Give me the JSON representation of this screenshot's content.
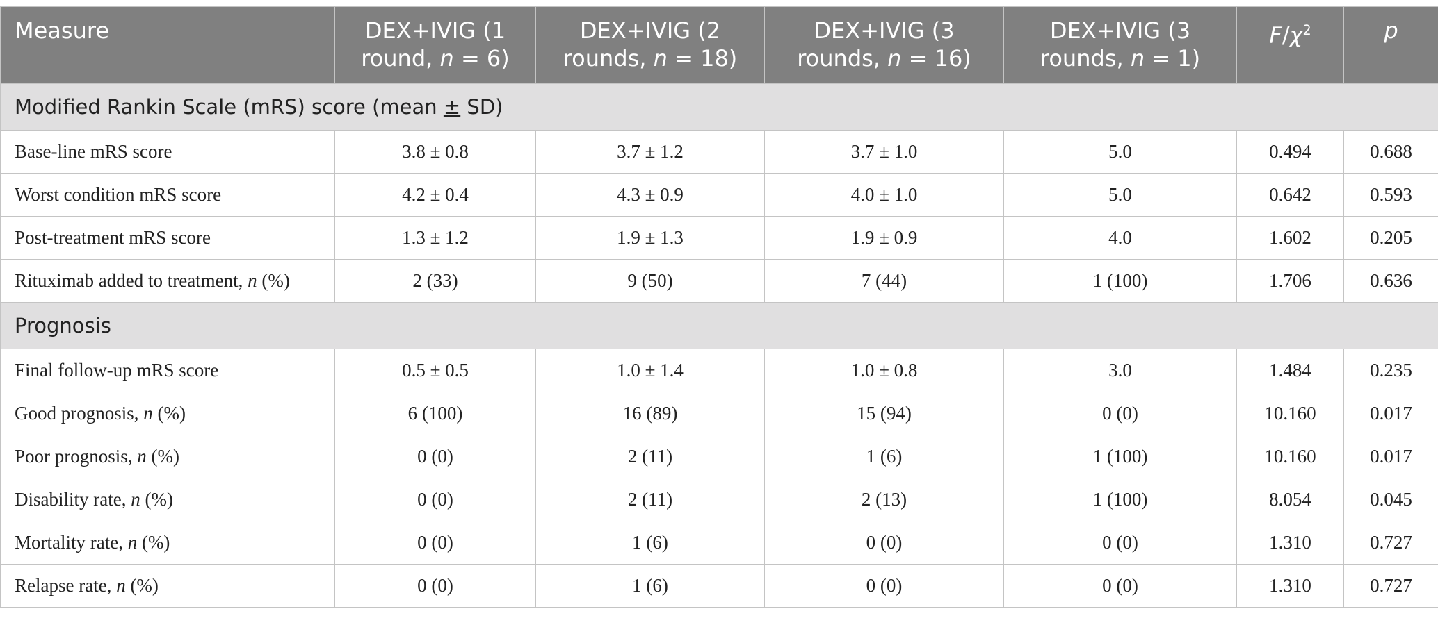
{
  "table": {
    "header": [
      [
        "Measure"
      ],
      [
        "DEX+IVIG (1 round, ",
        {
          "text": "n",
          "style": "italic"
        },
        " = 6)"
      ],
      [
        "DEX+IVIG (2 rounds, ",
        {
          "text": "n",
          "style": "italic"
        },
        " = 18)"
      ],
      [
        "DEX+IVIG (3 rounds, ",
        {
          "text": "n",
          "style": "italic"
        },
        " = 16)"
      ],
      [
        "DEX+IVIG (3 rounds, ",
        {
          "text": "n",
          "style": "italic"
        },
        " = 1)"
      ],
      [
        {
          "text": "F",
          "style": "italic"
        },
        "/",
        {
          "text": "χ",
          "style": "italic"
        },
        {
          "text": "2",
          "style": "sup"
        }
      ],
      [
        {
          "text": "p",
          "style": "italic"
        }
      ]
    ],
    "sections": [
      {
        "title": [
          "Modified Rankin Scale (mRS) score (mean ",
          {
            "text": "±",
            "style": "underline"
          },
          " SD)"
        ],
        "rows": [
          [
            [
              "Base-line mRS score"
            ],
            "3.8 ± 0.8",
            "3.7 ± 1.2",
            "3.7 ± 1.0",
            "5.0",
            "0.494",
            "0.688"
          ],
          [
            [
              "Worst condition mRS score"
            ],
            "4.2 ± 0.4",
            "4.3 ± 0.9",
            "4.0 ± 1.0",
            "5.0",
            "0.642",
            "0.593"
          ],
          [
            [
              "Post-treatment mRS score"
            ],
            "1.3 ± 1.2",
            "1.9 ± 1.3",
            "1.9 ± 0.9",
            "4.0",
            "1.602",
            "0.205"
          ],
          [
            [
              "Rituximab added to treatment, ",
              {
                "text": "n",
                "style": "italic"
              },
              " (%)"
            ],
            "2 (33)",
            "9 (50)",
            "7 (44)",
            "1 (100)",
            "1.706",
            "0.636"
          ]
        ]
      },
      {
        "title": [
          "Prognosis"
        ],
        "rows": [
          [
            [
              "Final follow-up mRS score"
            ],
            "0.5 ± 0.5",
            "1.0 ± 1.4",
            "1.0 ± 0.8",
            "3.0",
            "1.484",
            "0.235"
          ],
          [
            [
              "Good prognosis, ",
              {
                "text": "n",
                "style": "italic"
              },
              " (%)"
            ],
            "6 (100)",
            "16 (89)",
            "15 (94)",
            "0 (0)",
            "10.160",
            "0.017"
          ],
          [
            [
              "Poor prognosis, ",
              {
                "text": "n",
                "style": "italic"
              },
              " (%)"
            ],
            "0 (0)",
            "2 (11)",
            "1 (6)",
            "1 (100)",
            "10.160",
            "0.017"
          ],
          [
            [
              "Disability rate, ",
              {
                "text": "n",
                "style": "italic"
              },
              " (%)"
            ],
            "0 (0)",
            "2 (11)",
            "2 (13)",
            "1 (100)",
            "8.054",
            "0.045"
          ],
          [
            [
              "Mortality rate, ",
              {
                "text": "n",
                "style": "italic"
              },
              " (%)"
            ],
            "0 (0)",
            "1 (6)",
            "0 (0)",
            "0 (0)",
            "1.310",
            "0.727"
          ],
          [
            [
              "Relapse rate, ",
              {
                "text": "n",
                "style": "italic"
              },
              " (%)"
            ],
            "0 (0)",
            "1 (6)",
            "0 (0)",
            "0 (0)",
            "1.310",
            "0.727"
          ]
        ]
      }
    ]
  }
}
